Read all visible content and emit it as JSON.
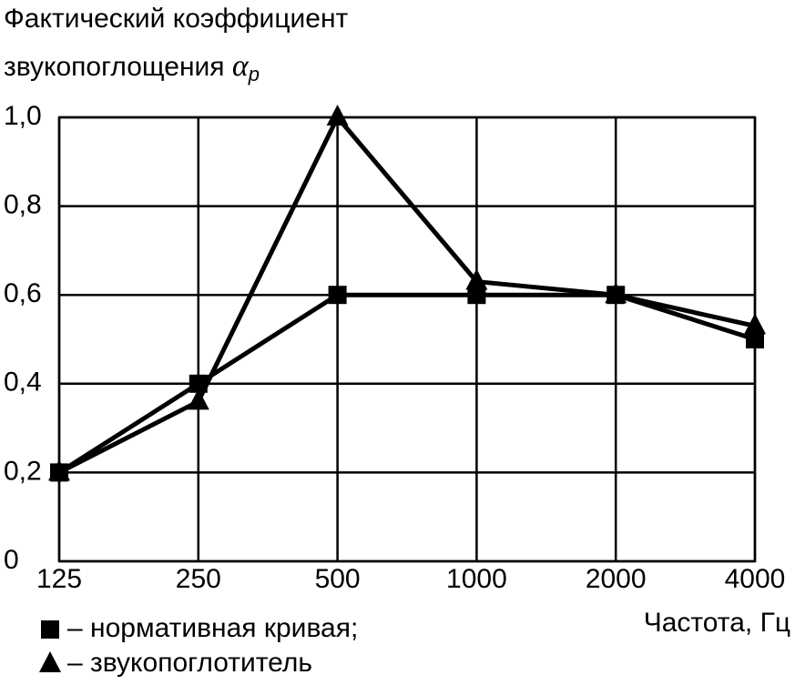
{
  "chart_data": {
    "type": "line",
    "title_lines": [
      "Фактический коэффициент",
      "звукопоглощения"
    ],
    "title_symbol": "α",
    "title_symbol_subscript": "p",
    "xlabel": "Частота, Гц",
    "categories": [
      "125",
      "250",
      "500",
      "1000",
      "2000",
      "4000"
    ],
    "series": [
      {
        "name": "– нормативная кривая;",
        "marker": "square",
        "color": "#000000",
        "values": [
          0.2,
          0.4,
          0.6,
          0.6,
          0.6,
          0.5
        ]
      },
      {
        "name": "– звукопоглотитель",
        "marker": "triangle",
        "color": "#000000",
        "values": [
          0.2,
          0.36,
          1.0,
          0.63,
          0.6,
          0.53
        ]
      }
    ],
    "ylim": [
      0,
      1.0
    ],
    "yticks": [
      0,
      {
        "value": 0.2,
        "label": "0,2"
      },
      {
        "value": 0.4,
        "label": "0,4"
      },
      {
        "value": 0.6,
        "label": "0,6"
      },
      {
        "value": 0.8,
        "label": "0,8"
      },
      {
        "value": 1.0,
        "label": "1,0"
      }
    ],
    "grid": true
  }
}
